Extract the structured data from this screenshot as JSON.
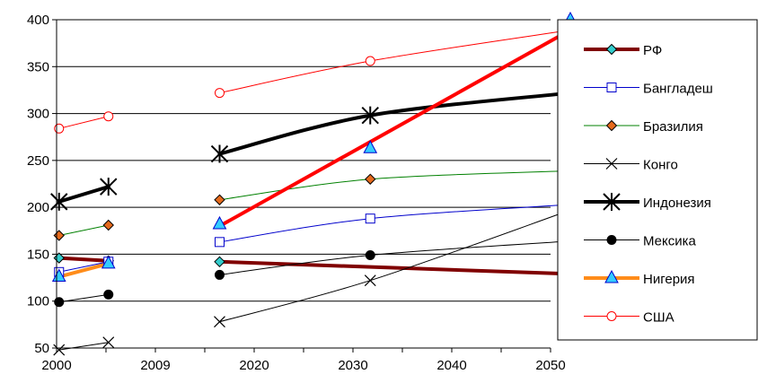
{
  "chart_data": {
    "type": "line",
    "title": "",
    "xlabel": "",
    "ylabel": "",
    "x_categories": [
      "2000",
      "",
      "2009",
      "",
      "2020",
      "",
      "2030",
      "",
      "2040",
      "",
      "2050"
    ],
    "ylim": [
      50,
      400
    ],
    "y_ticks": [
      "50",
      "100",
      "150",
      "200",
      "250",
      "300",
      "350",
      "400"
    ],
    "grid": "horizontal",
    "legend_position": "right",
    "series": [
      {
        "name": "РФ",
        "color": "#800000",
        "marker": "diamond",
        "marker_fill": "#33CCCC",
        "width": 4,
        "segments": [
          [
            [
              0.05,
              146
            ],
            [
              1.05,
              143
            ]
          ],
          [
            [
              3.3,
              142
            ],
            [
              10.4,
              129
            ]
          ]
        ]
      },
      {
        "name": "Бангладеш",
        "color": "#0000CC",
        "marker": "square",
        "marker_fill": "#ffffff",
        "width": 1,
        "segments": [
          [
            [
              0.05,
              131
            ],
            [
              1.05,
              142
            ]
          ],
          [
            [
              3.3,
              163
            ],
            [
              6.35,
              188
            ],
            [
              10.4,
              203
            ]
          ]
        ]
      },
      {
        "name": "Бразилия",
        "color": "#008000",
        "marker": "diamond",
        "marker_fill": "#E56A1C",
        "width": 1,
        "segments": [
          [
            [
              0.05,
              170
            ],
            [
              1.05,
              181
            ]
          ],
          [
            [
              3.3,
              208
            ],
            [
              6.35,
              230
            ],
            [
              10.4,
              239
            ]
          ]
        ]
      },
      {
        "name": "Конго",
        "color": "#000000",
        "marker": "x",
        "marker_fill": "#000000",
        "width": 1,
        "segments": [
          [
            [
              0.05,
              48
            ],
            [
              1.05,
              56
            ]
          ],
          [
            [
              3.3,
              78
            ],
            [
              6.35,
              122
            ],
            [
              10.4,
              197
            ]
          ]
        ]
      },
      {
        "name": "Индонезия",
        "color": "#000000",
        "marker": "star",
        "marker_fill": "#000000",
        "width": 4,
        "segments": [
          [
            [
              0.05,
              206
            ],
            [
              1.05,
              222
            ]
          ],
          [
            [
              3.3,
              257
            ],
            [
              6.35,
              298
            ],
            [
              10.4,
              322
            ]
          ]
        ]
      },
      {
        "name": "Мексика",
        "color": "#000000",
        "marker": "circle",
        "marker_fill": "#000000",
        "width": 1,
        "segments": [
          [
            [
              0.05,
              99
            ],
            [
              1.05,
              107
            ]
          ],
          [
            [
              3.3,
              128
            ],
            [
              6.35,
              149
            ],
            [
              10.4,
              164
            ]
          ]
        ]
      },
      {
        "name": "Нигерия",
        "color": "#FF8C1A",
        "marker": "triangle",
        "marker_fill": "#33CCFF",
        "width": 4,
        "segments": [
          [
            [
              0.05,
              126
            ],
            [
              1.05,
              140
            ]
          ]
        ],
        "markers_only": [
          [
            3.3,
            182
          ],
          [
            6.35,
            263
          ],
          [
            10.4,
            400
          ]
        ]
      },
      {
        "name": "США",
        "color": "#FF0000",
        "marker": "circle",
        "marker_fill": "#ffffff",
        "width": 1,
        "segments": [
          [
            [
              0.05,
              284
            ],
            [
              1.05,
              297
            ]
          ],
          [
            [
              3.3,
              322
            ],
            [
              6.35,
              356
            ],
            [
              10.4,
              389
            ]
          ]
        ]
      }
    ],
    "trend_lines": [
      {
        "color": "#FF0000",
        "width": 4,
        "points": [
          [
            3.3,
            180
          ],
          [
            10.4,
            389
          ]
        ]
      }
    ]
  }
}
